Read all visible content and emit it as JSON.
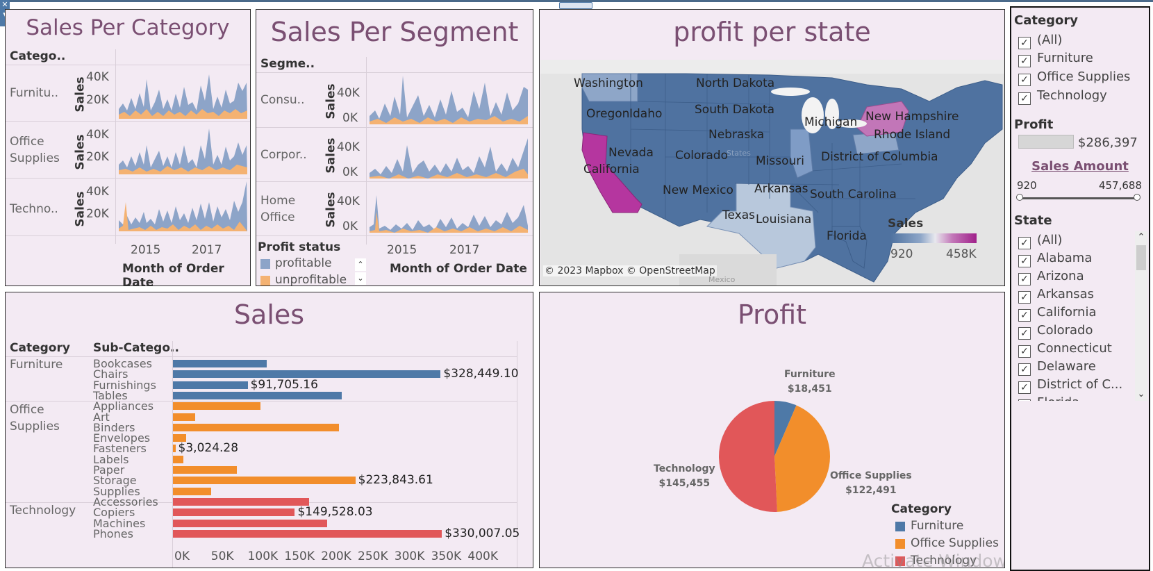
{
  "panels": {
    "sales_per_category": {
      "title": "Sales Per Category",
      "col_header": "Catego..",
      "rows": [
        "Furnitu..",
        "Office\nSupplies",
        "Techno.."
      ],
      "y_label": "Sales",
      "y_ticks": [
        "40K",
        "20K"
      ],
      "x_ticks": [
        "2015",
        "2017"
      ],
      "x_title": "Month of Order Date"
    },
    "sales_per_segment": {
      "title": "Sales Per Segment",
      "col_header": "Segme..",
      "rows": [
        "Consu..",
        "Corpor..",
        "Home\nOffice"
      ],
      "y_label": "Sales",
      "y_ticks": [
        "40K",
        "0K"
      ],
      "x_ticks": [
        "2015",
        "2017"
      ],
      "x_title": "Month of Order Date",
      "legend_title": "Profit status",
      "legend_items": [
        {
          "label": "profitable",
          "color": "#8da4c8"
        },
        {
          "label": "unprofitable",
          "color": "#f4b272"
        }
      ]
    },
    "profit_per_state": {
      "title": "profit per state",
      "attribution": "© 2023 Mapbox © OpenStreetMap",
      "legend_title": "Sales",
      "legend_min": "920",
      "legend_max": "458K",
      "state_labels": [
        "Washington",
        "North Dakota",
        "Oregon",
        "Idaho",
        "South Dakota",
        "New Hampshire",
        "Michigan",
        "Rhode Island",
        "Nebraska",
        "Nevada",
        "Colorado",
        "District of Columbia",
        "California",
        "Missouri",
        "New Mexico",
        "Arkansas",
        "South Carolina",
        "Texas",
        "Louisiana",
        "Florida"
      ],
      "faint_labels": [
        "States",
        "Mexico"
      ]
    },
    "sales": {
      "title": "Sales",
      "col_category": "Category",
      "col_subcategory": "Sub-Catego..",
      "x_ticks": [
        "0K",
        "50K",
        "100K",
        "150K",
        "200K",
        "250K",
        "300K",
        "350K",
        "400K"
      ]
    },
    "profit": {
      "title": "Profit",
      "legend_title": "Category",
      "legend_items": [
        {
          "label": "Furniture",
          "color": "#4e79a7"
        },
        {
          "label": "Office Supplies",
          "color": "#f28e2b"
        },
        {
          "label": "Technology",
          "color": "#e15759"
        }
      ],
      "slices": [
        {
          "name": "Furniture",
          "value_label": "$18,451"
        },
        {
          "name": "Office Supplies",
          "value_label": "$122,491"
        },
        {
          "name": "Technology",
          "value_label": "$145,455"
        }
      ],
      "watermark": "Activate Windows"
    }
  },
  "filters": {
    "category": {
      "title": "Category",
      "items": [
        "(All)",
        "Furniture",
        "Office Supplies",
        "Technology"
      ]
    },
    "profit": {
      "title": "Profit",
      "value": "$286,397"
    },
    "sales_amount": {
      "title": "Sales Amount",
      "min": "920",
      "max": "457,688"
    },
    "state": {
      "title": "State",
      "items": [
        "(All)",
        "Alabama",
        "Arizona",
        "Arkansas",
        "California",
        "Colorado",
        "Connecticut",
        "Delaware",
        "District of C...",
        "Florida"
      ]
    }
  },
  "chart_data": [
    {
      "type": "bar",
      "title": "Sales",
      "categories": [
        "Bookcases",
        "Chairs",
        "Furnishings",
        "Tables",
        "Appliances",
        "Art",
        "Binders",
        "Envelopes",
        "Fasteners",
        "Labels",
        "Paper",
        "Storage",
        "Supplies",
        "Accessories",
        "Copiers",
        "Machines",
        "Phones"
      ],
      "groups": [
        "Furniture",
        "Furniture",
        "Furniture",
        "Furniture",
        "Office Supplies",
        "Office Supplies",
        "Office Supplies",
        "Office Supplies",
        "Office Supplies",
        "Office Supplies",
        "Office Supplies",
        "Office Supplies",
        "Office Supplies",
        "Technology",
        "Technology",
        "Technology",
        "Technology"
      ],
      "values": [
        114880,
        328449.1,
        91705.16,
        206966,
        107532,
        27119,
        203413,
        16476,
        3024.28,
        12486,
        78479,
        223843.61,
        46674,
        167380,
        149528.03,
        189239,
        330007.05
      ],
      "value_labels": [
        "",
        "$328,449.10",
        "$91,705.16",
        "",
        "",
        "",
        "",
        "",
        "$3,024.28",
        "",
        "",
        "$223,843.61",
        "",
        "",
        "$149,528.03",
        "",
        "$330,007.05"
      ],
      "xlim": [
        0,
        450000
      ],
      "colors": {
        "Furniture": "#4e79a7",
        "Office Supplies": "#f28e2b",
        "Technology": "#e15759"
      }
    },
    {
      "type": "pie",
      "title": "Profit",
      "labels": [
        "Furniture",
        "Office Supplies",
        "Technology"
      ],
      "values": [
        18451,
        122491,
        145455
      ],
      "colors": [
        "#4e79a7",
        "#f28e2b",
        "#e15759"
      ]
    }
  ]
}
